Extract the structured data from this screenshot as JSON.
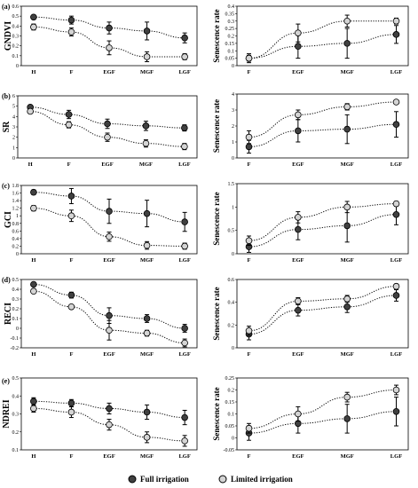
{
  "legend": {
    "full": "Full irrigation",
    "limited": "Limited irrigation",
    "colors": {
      "full": "#404040",
      "limited": "#d4d4d4"
    }
  },
  "chart_data": [
    {
      "id": "a-left",
      "panel": "(a)",
      "type": "line",
      "ylabel": "GNDVI",
      "xlabel": "",
      "categories": [
        "H",
        "F",
        "EGF",
        "MGF",
        "LGF"
      ],
      "yticks": [
        "0",
        "0.1",
        "0.2",
        "0.3",
        "0.4",
        "0.5",
        "0.6"
      ],
      "ylim": [
        0,
        0.6
      ],
      "series": [
        {
          "name": "Full irrigation",
          "values": [
            0.49,
            0.46,
            0.38,
            0.35,
            0.28
          ],
          "err": [
            0.02,
            0.04,
            0.06,
            0.09,
            0.05
          ]
        },
        {
          "name": "Limited irrigation",
          "values": [
            0.39,
            0.34,
            0.18,
            0.09,
            0.09
          ],
          "err": [
            0.03,
            0.04,
            0.07,
            0.05,
            0.03
          ]
        }
      ]
    },
    {
      "id": "a-right",
      "panel": "",
      "type": "line",
      "ylabel": "Senescence rate",
      "xlabel": "",
      "categories": [
        "F",
        "EGF",
        "MGF",
        "LGF"
      ],
      "yticks": [
        "0",
        "0.05",
        "0.1",
        "0.15",
        "0.2",
        "0.25",
        "0.3",
        "0.35",
        "0.4"
      ],
      "ylim": [
        0,
        0.4
      ],
      "series": [
        {
          "name": "Full irrigation",
          "values": [
            0.05,
            0.13,
            0.15,
            0.21
          ],
          "err": [
            0.03,
            0.08,
            0.1,
            0.06
          ]
        },
        {
          "name": "Limited irrigation",
          "values": [
            0.05,
            0.22,
            0.3,
            0.3
          ],
          "err": [
            0.02,
            0.06,
            0.04,
            0.02
          ]
        }
      ]
    },
    {
      "id": "b-left",
      "panel": "(b)",
      "type": "line",
      "ylabel": "SR",
      "xlabel": "",
      "categories": [
        "H",
        "F",
        "EGF",
        "MGF",
        "LGF"
      ],
      "yticks": [
        "0",
        "1",
        "2",
        "3",
        "4",
        "5",
        "6"
      ],
      "ylim": [
        0,
        6
      ],
      "series": [
        {
          "name": "Full irrigation",
          "values": [
            4.9,
            4.2,
            3.3,
            3.1,
            2.9
          ],
          "err": [
            0.15,
            0.4,
            0.45,
            0.45,
            0.3
          ]
        },
        {
          "name": "Limited irrigation",
          "values": [
            4.5,
            3.2,
            2.0,
            1.4,
            1.1
          ],
          "err": [
            0.2,
            0.3,
            0.4,
            0.35,
            0.3
          ]
        }
      ]
    },
    {
      "id": "b-right",
      "panel": "",
      "type": "line",
      "ylabel": "Senescence rate",
      "xlabel": "",
      "categories": [
        "F",
        "EGF",
        "MGF",
        "LGF"
      ],
      "yticks": [
        "0",
        "1",
        "2",
        "3",
        "4"
      ],
      "ylim": [
        0,
        4
      ],
      "series": [
        {
          "name": "Full irrigation",
          "values": [
            0.7,
            1.7,
            1.8,
            2.1
          ],
          "err": [
            0.4,
            0.7,
            0.9,
            0.8
          ]
        },
        {
          "name": "Limited irrigation",
          "values": [
            1.3,
            2.7,
            3.2,
            3.5
          ],
          "err": [
            0.4,
            0.3,
            0.2,
            0.1
          ]
        }
      ]
    },
    {
      "id": "c-left",
      "panel": "(c)",
      "type": "line",
      "ylabel": "GCI",
      "xlabel": "",
      "categories": [
        "H",
        "F",
        "EGF",
        "MGF",
        "LGF"
      ],
      "yticks": [
        "0",
        "0.2",
        "0.4",
        "0.6",
        "0.8",
        "1",
        "1.2",
        "1.4",
        "1.6",
        "1.8"
      ],
      "ylim": [
        0,
        1.8
      ],
      "series": [
        {
          "name": "Full irrigation",
          "values": [
            1.62,
            1.52,
            1.12,
            1.06,
            0.84
          ],
          "err": [
            0.06,
            0.2,
            0.32,
            0.35,
            0.25
          ]
        },
        {
          "name": "Limited irrigation",
          "values": [
            1.2,
            1.0,
            0.45,
            0.22,
            0.2
          ],
          "err": [
            0.07,
            0.15,
            0.12,
            0.1,
            0.08
          ]
        }
      ]
    },
    {
      "id": "c-right",
      "panel": "",
      "type": "line",
      "ylabel": "Senescence rate",
      "xlabel": "",
      "categories": [
        "F",
        "EGF",
        "MGF",
        "LGF"
      ],
      "yticks": [
        "0",
        "0.5",
        "1",
        "1.5"
      ],
      "ylim": [
        0,
        1.5
      ],
      "series": [
        {
          "name": "Full irrigation",
          "values": [
            0.15,
            0.52,
            0.6,
            0.84
          ],
          "err": [
            0.12,
            0.22,
            0.35,
            0.22
          ]
        },
        {
          "name": "Limited irrigation",
          "values": [
            0.28,
            0.78,
            1.0,
            1.07
          ],
          "err": [
            0.1,
            0.12,
            0.12,
            0.05
          ]
        }
      ]
    },
    {
      "id": "d-left",
      "panel": "(d)",
      "type": "line",
      "ylabel": "RECI",
      "xlabel": "",
      "categories": [
        "H",
        "F",
        "EGF",
        "MGF",
        "LGF"
      ],
      "yticks": [
        "-0.2",
        "-0.1",
        "0",
        "0.1",
        "0.2",
        "0.3",
        "0.4",
        "0.5"
      ],
      "ylim": [
        -0.2,
        0.5
      ],
      "series": [
        {
          "name": "Full irrigation",
          "values": [
            0.45,
            0.34,
            0.13,
            0.1,
            0.0
          ],
          "err": [
            0.02,
            0.03,
            0.08,
            0.04,
            0.04
          ]
        },
        {
          "name": "Limited irrigation",
          "values": [
            0.38,
            0.22,
            -0.02,
            -0.05,
            -0.15
          ],
          "err": [
            0.02,
            0.02,
            0.1,
            0.03,
            0.04
          ]
        }
      ]
    },
    {
      "id": "d-right",
      "panel": "",
      "type": "line",
      "ylabel": "Senescence rate",
      "xlabel": "",
      "categories": [
        "F",
        "EGF",
        "MGF",
        "LGF"
      ],
      "yticks": [
        "0",
        "0.2",
        "0.4",
        "0.6"
      ],
      "ylim": [
        0,
        0.6
      ],
      "series": [
        {
          "name": "Full irrigation",
          "values": [
            0.12,
            0.33,
            0.36,
            0.46
          ],
          "err": [
            0.05,
            0.05,
            0.05,
            0.05
          ]
        },
        {
          "name": "Limited irrigation",
          "values": [
            0.15,
            0.41,
            0.43,
            0.54
          ],
          "err": [
            0.04,
            0.03,
            0.03,
            0.02
          ]
        }
      ]
    },
    {
      "id": "e-left",
      "panel": "(e)",
      "type": "line",
      "ylabel": "NDREI",
      "xlabel": "",
      "categories": [
        "H",
        "F",
        "EGF",
        "MGF",
        "LGF"
      ],
      "yticks": [
        "0.1",
        "0.2",
        "0.3",
        "0.4",
        "0.5"
      ],
      "ylim": [
        0.1,
        0.5
      ],
      "series": [
        {
          "name": "Full irrigation",
          "values": [
            0.37,
            0.36,
            0.33,
            0.31,
            0.28
          ],
          "err": [
            0.02,
            0.02,
            0.03,
            0.04,
            0.04
          ]
        },
        {
          "name": "Limited irrigation",
          "values": [
            0.33,
            0.31,
            0.24,
            0.17,
            0.15
          ],
          "err": [
            0.02,
            0.03,
            0.03,
            0.03,
            0.03
          ]
        }
      ]
    },
    {
      "id": "e-right",
      "panel": "",
      "type": "line",
      "ylabel": "Senescence rate",
      "xlabel": "",
      "categories": [
        "F",
        "EGF",
        "MGF",
        "LGF"
      ],
      "yticks": [
        "-0.05",
        "0",
        "0.05",
        "0.1",
        "0.15",
        "0.2",
        "0.25"
      ],
      "ylim": [
        -0.05,
        0.25
      ],
      "series": [
        {
          "name": "Full irrigation",
          "values": [
            0.02,
            0.06,
            0.08,
            0.11
          ],
          "err": [
            0.03,
            0.04,
            0.06,
            0.06
          ]
        },
        {
          "name": "Limited irrigation",
          "values": [
            0.04,
            0.1,
            0.17,
            0.2
          ],
          "err": [
            0.02,
            0.03,
            0.02,
            0.02
          ]
        }
      ]
    }
  ]
}
